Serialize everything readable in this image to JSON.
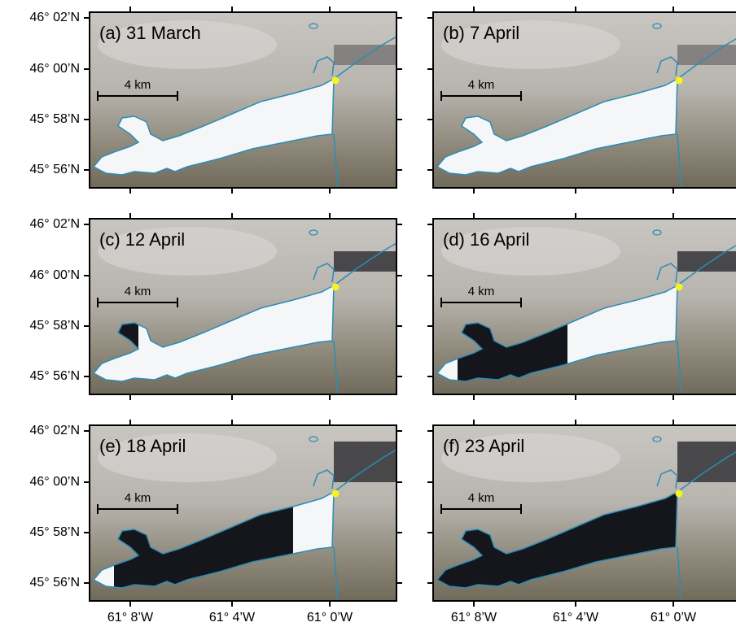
{
  "panels": [
    {
      "label": "(a) 31 March",
      "scale_label": "4 km"
    },
    {
      "label": "(b) 7 April",
      "scale_label": "4 km"
    },
    {
      "label": "(c) 12 April",
      "scale_label": "4 km"
    },
    {
      "label": "(d) 16 April",
      "scale_label": "4 km"
    },
    {
      "label": "(e) 18 April",
      "scale_label": "4 km"
    },
    {
      "label": "(f) 23 April",
      "scale_label": "4 km"
    }
  ],
  "latitude_labels": [
    "46° 02’N",
    "46° 00’N",
    "45° 58’N",
    "45° 56’N"
  ],
  "longitude_labels": [
    "61° 8’W",
    "61° 4’W",
    "61° 0’W"
  ]
}
